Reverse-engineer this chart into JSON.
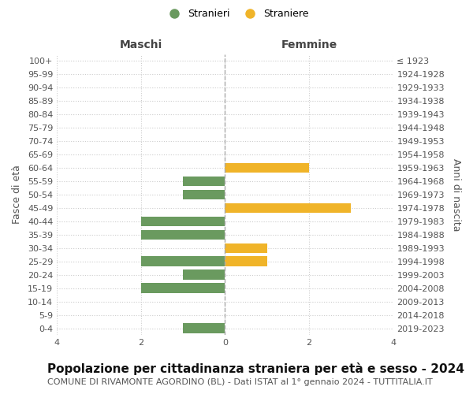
{
  "age_groups": [
    "100+",
    "95-99",
    "90-94",
    "85-89",
    "80-84",
    "75-79",
    "70-74",
    "65-69",
    "60-64",
    "55-59",
    "50-54",
    "45-49",
    "40-44",
    "35-39",
    "30-34",
    "25-29",
    "20-24",
    "15-19",
    "10-14",
    "5-9",
    "0-4"
  ],
  "birth_years": [
    "≤ 1923",
    "1924-1928",
    "1929-1933",
    "1934-1938",
    "1939-1943",
    "1944-1948",
    "1949-1953",
    "1954-1958",
    "1959-1963",
    "1964-1968",
    "1969-1973",
    "1974-1978",
    "1979-1983",
    "1984-1988",
    "1989-1993",
    "1994-1998",
    "1999-2003",
    "2004-2008",
    "2009-2013",
    "2014-2018",
    "2019-2023"
  ],
  "males": [
    0,
    0,
    0,
    0,
    0,
    0,
    0,
    0,
    0,
    1,
    1,
    0,
    2,
    2,
    0,
    2,
    1,
    2,
    0,
    0,
    1
  ],
  "females": [
    0,
    0,
    0,
    0,
    0,
    0,
    0,
    0,
    2,
    0,
    0,
    3,
    0,
    0,
    1,
    1,
    0,
    0,
    0,
    0,
    0
  ],
  "male_color": "#6a9a5f",
  "female_color": "#f0b429",
  "title": "Popolazione per cittadinanza straniera per età e sesso - 2024",
  "subtitle": "COMUNE DI RIVAMONTE AGORDINO (BL) - Dati ISTAT al 1° gennaio 2024 - TUTTITALIA.IT",
  "left_header": "Maschi",
  "right_header": "Femmine",
  "left_ylabel": "Fasce di età",
  "right_ylabel": "Anni di nascita",
  "legend_stranieri": "Stranieri",
  "legend_straniere": "Straniere",
  "xlim": 4,
  "background_color": "#ffffff",
  "grid_color": "#cccccc",
  "title_fontsize": 11,
  "subtitle_fontsize": 8,
  "tick_fontsize": 8,
  "bar_height": 0.75
}
